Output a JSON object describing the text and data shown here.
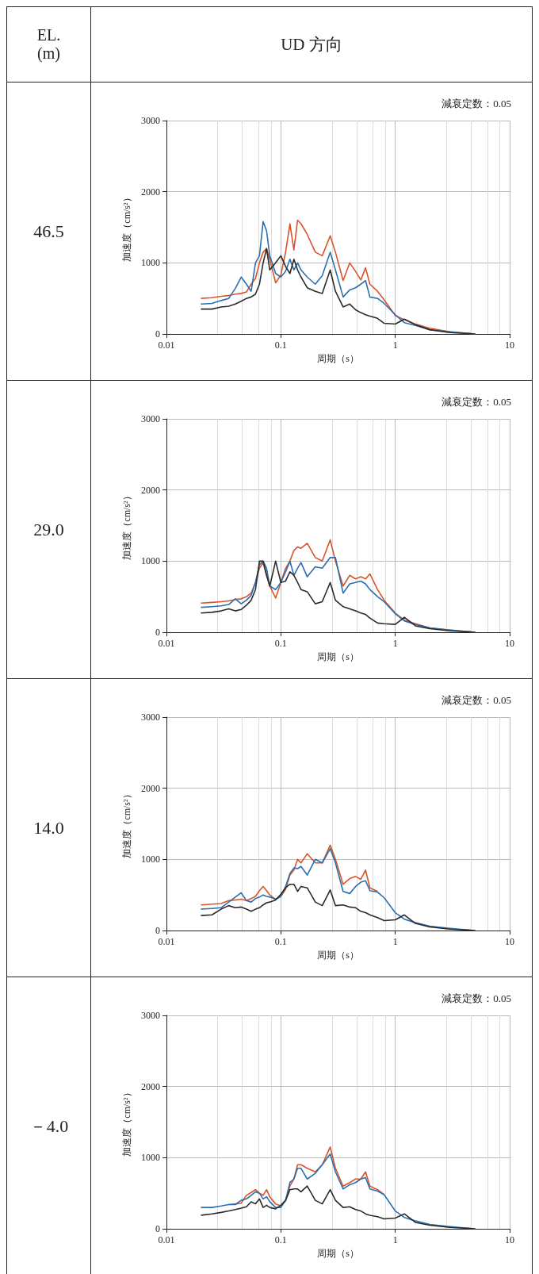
{
  "chart_data": [
    {
      "type": "line",
      "title": "46.5",
      "annotations": [
        "EL.\n(m)",
        "UD 方向",
        "減衰定数：0.05"
      ],
      "xlabel": "周期（s）",
      "ylabel": "加速度（cm/s²）",
      "log": "x",
      "grid": true,
      "xlim": [
        0.01,
        10
      ],
      "xticks": [
        0.01,
        0.1,
        1,
        10
      ],
      "ylim": [
        0,
        3000
      ],
      "yticks": [
        0,
        1000,
        2000,
        3000
      ],
      "x": [
        0.02,
        0.025,
        0.03,
        0.035,
        0.04,
        0.045,
        0.05,
        0.055,
        0.06,
        0.065,
        0.07,
        0.075,
        0.08,
        0.09,
        0.1,
        0.11,
        0.12,
        0.13,
        0.14,
        0.15,
        0.17,
        0.2,
        0.23,
        0.27,
        0.3,
        0.35,
        0.4,
        0.45,
        0.5,
        0.55,
        0.6,
        0.7,
        0.8,
        1.0,
        1.2,
        1.5,
        2,
        3,
        5
      ],
      "series": [
        {
          "color": "#d9542b",
          "values": [
            500,
            510,
            530,
            540,
            560,
            570,
            590,
            700,
            780,
            1000,
            1150,
            1200,
            1050,
            720,
            830,
            1150,
            1550,
            1180,
            1600,
            1550,
            1400,
            1150,
            1100,
            1380,
            1150,
            750,
            1000,
            880,
            760,
            930,
            700,
            600,
            480,
            260,
            200,
            140,
            80,
            30,
            0
          ]
        },
        {
          "color": "#2a6fb0",
          "values": [
            420,
            430,
            470,
            500,
            640,
            800,
            700,
            600,
            1000,
            1100,
            1580,
            1450,
            1100,
            850,
            800,
            880,
            1050,
            900,
            1000,
            900,
            800,
            700,
            820,
            1150,
            900,
            520,
            620,
            650,
            700,
            750,
            520,
            500,
            430,
            270,
            160,
            120,
            60,
            30,
            0
          ]
        },
        {
          "color": "#2b2b2b",
          "values": [
            350,
            350,
            380,
            390,
            420,
            460,
            500,
            520,
            560,
            700,
            1000,
            1200,
            900,
            1000,
            1100,
            950,
            850,
            1050,
            900,
            800,
            650,
            600,
            570,
            900,
            600,
            380,
            420,
            340,
            300,
            270,
            250,
            220,
            150,
            140,
            210,
            130,
            60,
            20,
            0
          ]
        }
      ]
    },
    {
      "type": "line",
      "title": "29.0",
      "annotations": [
        "減衰定数：0.05"
      ],
      "xlabel": "周期（s）",
      "ylabel": "加速度（cm/s²）",
      "log": "x",
      "grid": true,
      "xlim": [
        0.01,
        10
      ],
      "xticks": [
        0.01,
        0.1,
        1,
        10
      ],
      "ylim": [
        0,
        3000
      ],
      "yticks": [
        0,
        1000,
        2000,
        3000
      ],
      "x": [
        0.02,
        0.025,
        0.03,
        0.035,
        0.04,
        0.045,
        0.05,
        0.055,
        0.06,
        0.065,
        0.07,
        0.075,
        0.08,
        0.09,
        0.1,
        0.11,
        0.12,
        0.13,
        0.14,
        0.15,
        0.17,
        0.2,
        0.23,
        0.27,
        0.3,
        0.35,
        0.4,
        0.45,
        0.5,
        0.55,
        0.6,
        0.7,
        0.8,
        1.0,
        1.2,
        1.5,
        2,
        3,
        5
      ],
      "series": [
        {
          "color": "#d9542b",
          "values": [
            410,
            420,
            430,
            440,
            460,
            470,
            500,
            550,
            700,
            900,
            980,
            800,
            650,
            480,
            700,
            900,
            1000,
            1150,
            1200,
            1180,
            1250,
            1050,
            1000,
            1300,
            1000,
            650,
            800,
            750,
            780,
            750,
            820,
            600,
            450,
            270,
            170,
            120,
            60,
            30,
            0
          ]
        },
        {
          "color": "#2a6fb0",
          "values": [
            350,
            360,
            370,
            390,
            470,
            400,
            450,
            520,
            700,
            950,
            1000,
            900,
            650,
            600,
            700,
            850,
            1000,
            800,
            900,
            980,
            780,
            920,
            900,
            1050,
            1050,
            550,
            680,
            700,
            720,
            680,
            600,
            500,
            430,
            260,
            160,
            110,
            60,
            30,
            0
          ]
        },
        {
          "color": "#2b2b2b",
          "values": [
            270,
            280,
            300,
            330,
            300,
            320,
            380,
            450,
            600,
            1000,
            1000,
            800,
            650,
            1000,
            700,
            720,
            850,
            800,
            700,
            600,
            570,
            400,
            430,
            700,
            450,
            360,
            330,
            300,
            270,
            250,
            200,
            130,
            120,
            110,
            210,
            90,
            50,
            20,
            0
          ]
        }
      ]
    },
    {
      "type": "line",
      "title": "14.0",
      "annotations": [
        "減衰定数：0.05"
      ],
      "xlabel": "周期（s）",
      "ylabel": "加速度（cm/s²）",
      "log": "x",
      "grid": true,
      "xlim": [
        0.01,
        10
      ],
      "xticks": [
        0.01,
        0.1,
        1,
        10
      ],
      "ylim": [
        0,
        3000
      ],
      "yticks": [
        0,
        1000,
        2000,
        3000
      ],
      "x": [
        0.02,
        0.025,
        0.03,
        0.035,
        0.04,
        0.045,
        0.05,
        0.055,
        0.06,
        0.065,
        0.07,
        0.075,
        0.08,
        0.09,
        0.1,
        0.11,
        0.12,
        0.13,
        0.14,
        0.15,
        0.17,
        0.2,
        0.23,
        0.27,
        0.3,
        0.35,
        0.4,
        0.45,
        0.5,
        0.55,
        0.6,
        0.7,
        0.8,
        1.0,
        1.2,
        1.5,
        2,
        3,
        5
      ],
      "series": [
        {
          "color": "#d9542b",
          "values": [
            360,
            370,
            380,
            420,
            430,
            440,
            420,
            450,
            480,
            560,
            620,
            560,
            500,
            440,
            480,
            580,
            780,
            850,
            1000,
            950,
            1080,
            950,
            950,
            1200,
            1000,
            650,
            730,
            760,
            720,
            850,
            600,
            550,
            null,
            null,
            null,
            null,
            null,
            null,
            null
          ]
        },
        {
          "color": "#2a6fb0",
          "values": [
            300,
            310,
            320,
            400,
            470,
            530,
            420,
            400,
            450,
            470,
            500,
            480,
            470,
            440,
            480,
            620,
            800,
            880,
            870,
            900,
            780,
            1000,
            950,
            1150,
            950,
            550,
            520,
            620,
            680,
            700,
            560,
            540,
            460,
            250,
            160,
            110,
            60,
            30,
            0
          ]
        },
        {
          "color": "#2b2b2b",
          "values": [
            210,
            220,
            300,
            350,
            320,
            330,
            300,
            270,
            300,
            320,
            360,
            390,
            400,
            430,
            510,
            600,
            650,
            650,
            550,
            620,
            600,
            400,
            350,
            570,
            350,
            360,
            330,
            320,
            270,
            250,
            220,
            180,
            140,
            150,
            220,
            100,
            50,
            20,
            0
          ]
        }
      ]
    },
    {
      "type": "line",
      "title": "－4.0",
      "annotations": [
        "減衰定数：0.05"
      ],
      "xlabel": "周期（s）",
      "ylabel": "加速度（cm/s²）",
      "log": "x",
      "grid": true,
      "xlim": [
        0.01,
        10
      ],
      "xticks": [
        0.01,
        0.1,
        1,
        10
      ],
      "ylim": [
        0,
        3000
      ],
      "yticks": [
        0,
        1000,
        2000,
        3000
      ],
      "x": [
        0.02,
        0.025,
        0.03,
        0.035,
        0.04,
        0.045,
        0.05,
        0.055,
        0.06,
        0.065,
        0.07,
        0.075,
        0.08,
        0.09,
        0.1,
        0.11,
        0.12,
        0.13,
        0.14,
        0.15,
        0.17,
        0.2,
        0.23,
        0.27,
        0.3,
        0.35,
        0.4,
        0.45,
        0.5,
        0.55,
        0.6,
        0.7,
        0.8,
        1.0,
        1.2,
        1.5,
        2,
        3,
        5
      ],
      "series": [
        {
          "color": "#d9542b",
          "values": [
            null,
            null,
            null,
            340,
            350,
            360,
            470,
            510,
            550,
            500,
            470,
            550,
            450,
            350,
            320,
            400,
            600,
            700,
            900,
            900,
            850,
            800,
            900,
            1150,
            850,
            600,
            650,
            700,
            700,
            800,
            600,
            550,
            480,
            null,
            null,
            null,
            null,
            null,
            null
          ]
        },
        {
          "color": "#2a6fb0",
          "values": [
            300,
            300,
            320,
            340,
            340,
            400,
            420,
            470,
            520,
            500,
            420,
            450,
            380,
            300,
            300,
            400,
            650,
            700,
            850,
            850,
            700,
            780,
            900,
            1050,
            800,
            560,
            620,
            650,
            700,
            720,
            560,
            530,
            480,
            250,
            160,
            110,
            60,
            30,
            0
          ]
        },
        {
          "color": "#2b2b2b",
          "values": [
            190,
            210,
            230,
            250,
            270,
            290,
            310,
            380,
            350,
            420,
            300,
            330,
            300,
            280,
            330,
            400,
            550,
            560,
            560,
            520,
            600,
            400,
            350,
            550,
            400,
            300,
            310,
            270,
            250,
            210,
            190,
            170,
            140,
            150,
            210,
            90,
            50,
            20,
            0
          ]
        }
      ]
    }
  ]
}
